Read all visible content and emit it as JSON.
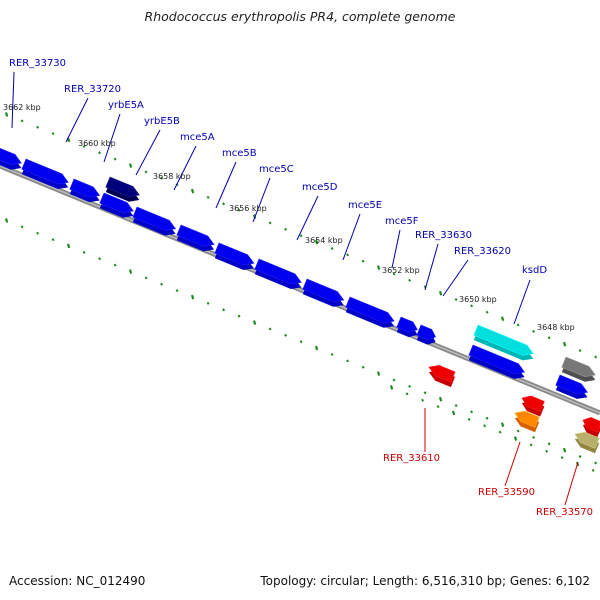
{
  "title": "Rhodococcus erythropolis PR4, complete genome",
  "footer": {
    "accession": "Accession: NC_012490",
    "summary": "Topology: circular; Length: 6,516,310 bp; Genes: 6,102"
  },
  "colors": {
    "forward_gene": "#0000ee",
    "reverse_gene": "#ee0000",
    "forward_label": "#0000b0",
    "reverse_label": "#cc0000",
    "tick": "#1f8a1f",
    "backbone": "#888888"
  },
  "scale_labels": [
    "3662 kbp",
    "3660 kbp",
    "3658 kbp",
    "3656 kbp",
    "3654 kbp",
    "3652 kbp",
    "3650 kbp",
    "3648 kbp"
  ],
  "genes_forward": [
    {
      "label": "RER_33730",
      "color": "#0000ee"
    },
    {
      "label": "RER_33720",
      "color": "#0000ee"
    },
    {
      "label": "yrbE5A",
      "color": "#0000ee"
    },
    {
      "label": "yrbE5B",
      "color": "#00007a"
    },
    {
      "label": "mce5A",
      "color": "#0000ee"
    },
    {
      "label": "mce5B",
      "color": "#0000ee"
    },
    {
      "label": "mce5C",
      "color": "#0000ee"
    },
    {
      "label": "mce5D",
      "color": "#0000ee"
    },
    {
      "label": "mce5E",
      "color": "#0000ee"
    },
    {
      "label": "mce5F",
      "color": "#0000ee"
    },
    {
      "label": "RER_33630",
      "color": "#0000ee"
    },
    {
      "label": "RER_33620",
      "color": "#0000ee"
    },
    {
      "label": "ksdD",
      "color": "#00dede"
    }
  ],
  "genes_reverse": [
    {
      "label": "RER_33610",
      "color": "#ee0000"
    },
    {
      "label": "RER_33590",
      "color": "#ff8800"
    },
    {
      "label": "RER_33570",
      "color": "#b8b06a"
    }
  ]
}
